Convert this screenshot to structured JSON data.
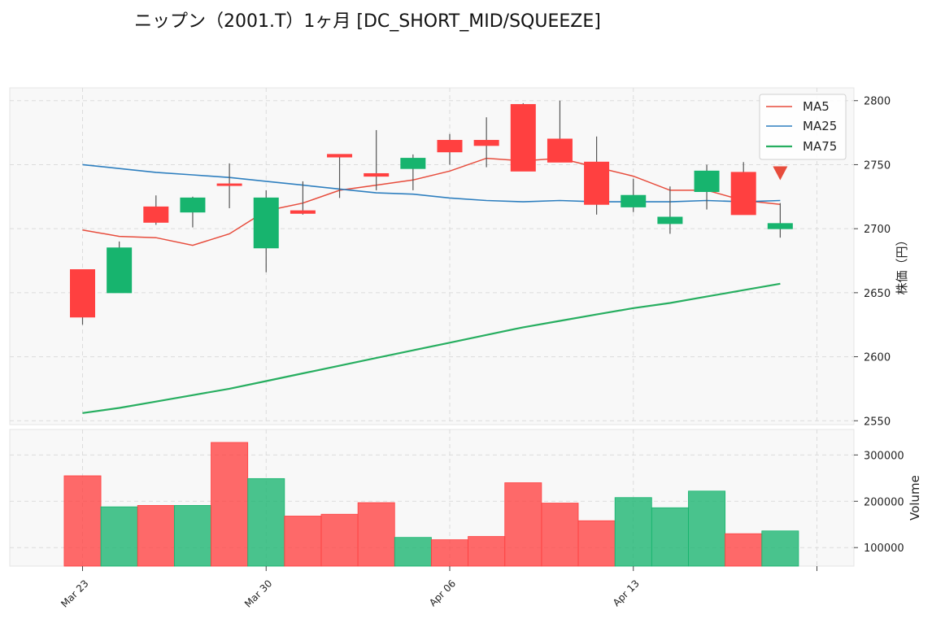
{
  "title": "ニップン（2001.T）1ヶ月 [DC_SHORT_MID/SQUEEZE]",
  "chart_data": {
    "type": "candlestick",
    "title": "ニップン（2001.T）1ヶ月 [DC_SHORT_MID/SQUEEZE]",
    "price_ylabel": "株価（円）",
    "volume_ylabel": "Volume",
    "price_ylim": [
      2547,
      2810
    ],
    "volume_ylim": [
      60000,
      355000
    ],
    "price_ticks": [
      2550,
      2600,
      2650,
      2700,
      2750,
      2800
    ],
    "volume_ticks": [
      100000,
      200000,
      300000
    ],
    "x_tick_labels": [
      {
        "index": 0,
        "label": "Mar 23"
      },
      {
        "index": 5,
        "label": "Mar 30"
      },
      {
        "index": 10,
        "label": "Apr 06"
      },
      {
        "index": 15,
        "label": "Apr 13"
      },
      {
        "index": 20,
        "label": ""
      }
    ],
    "grid": true,
    "legend_position": "top-right",
    "colors": {
      "up": "#17b46e",
      "down": "#ff4040",
      "ma5": "#e74c3c",
      "ma25": "#2e7fbf",
      "ma75": "#27ae60",
      "signal": "#e74c3c"
    },
    "candles": [
      {
        "open": 2668,
        "high": 2668,
        "low": 2625,
        "close": 2631
      },
      {
        "open": 2650,
        "high": 2690,
        "low": 2650,
        "close": 2685
      },
      {
        "open": 2717,
        "high": 2726,
        "low": 2703,
        "close": 2705
      },
      {
        "open": 2713,
        "high": 2725,
        "low": 2701,
        "close": 2724
      },
      {
        "open": 2735,
        "high": 2751,
        "low": 2716,
        "close": 2734
      },
      {
        "open": 2685,
        "high": 2730,
        "low": 2666,
        "close": 2724
      },
      {
        "open": 2714,
        "high": 2737,
        "low": 2711,
        "close": 2712
      },
      {
        "open": 2758,
        "high": 2758,
        "low": 2724,
        "close": 2756
      },
      {
        "open": 2743,
        "high": 2777,
        "low": 2730,
        "close": 2741
      },
      {
        "open": 2747,
        "high": 2758,
        "low": 2730,
        "close": 2755
      },
      {
        "open": 2769,
        "high": 2774,
        "low": 2750,
        "close": 2760
      },
      {
        "open": 2769,
        "high": 2787,
        "low": 2748,
        "close": 2765
      },
      {
        "open": 2797,
        "high": 2798,
        "low": 2745,
        "close": 2745
      },
      {
        "open": 2770,
        "high": 2800,
        "low": 2752,
        "close": 2752
      },
      {
        "open": 2752,
        "high": 2772,
        "low": 2711,
        "close": 2719
      },
      {
        "open": 2717,
        "high": 2739,
        "low": 2713,
        "close": 2726
      },
      {
        "open": 2704,
        "high": 2733,
        "low": 2696,
        "close": 2709
      },
      {
        "open": 2729,
        "high": 2750,
        "low": 2715,
        "close": 2745
      },
      {
        "open": 2744,
        "high": 2752,
        "low": 2711,
        "close": 2711
      },
      {
        "open": 2700,
        "high": 2720,
        "low": 2693,
        "close": 2704
      }
    ],
    "volume": [
      255000,
      188000,
      191000,
      191000,
      327000,
      249000,
      168000,
      172000,
      197000,
      122000,
      117000,
      124000,
      240000,
      196000,
      158000,
      208000,
      186000,
      222000,
      130000,
      136000
    ],
    "series": [
      {
        "name": "MA5",
        "values": [
          2699,
          2694,
          2693,
          2687,
          2696,
          2714,
          2720,
          2730,
          2734,
          2738,
          2745,
          2755,
          2753,
          2755,
          2748,
          2741,
          2730,
          2730,
          2722,
          2719
        ]
      },
      {
        "name": "MA25",
        "values": [
          2750,
          2747,
          2744,
          2742,
          2740,
          2737,
          2734,
          2731,
          2728,
          2727,
          2724,
          2722,
          2721,
          2722,
          2721,
          2721,
          2721,
          2722,
          2721,
          2722
        ]
      },
      {
        "name": "MA75",
        "values": [
          2556,
          2560,
          2565,
          2570,
          2575,
          2581,
          2587,
          2593,
          2599,
          2605,
          2611,
          2617,
          2623,
          2628,
          2633,
          2638,
          2642,
          2647,
          2652,
          2657
        ]
      }
    ],
    "signal_marker": {
      "index": 19,
      "price": 2743,
      "type": "sell"
    }
  }
}
